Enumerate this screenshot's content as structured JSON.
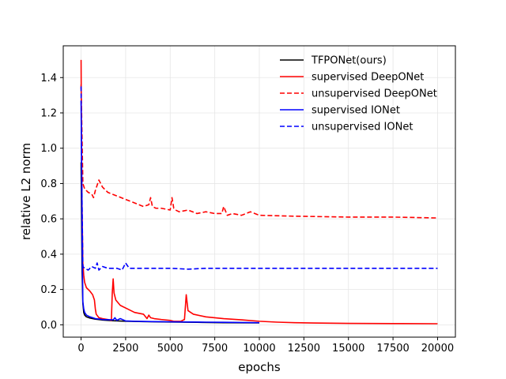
{
  "chart_data": {
    "type": "line",
    "title": "",
    "xlabel": "epochs",
    "ylabel": "relative L2 norm",
    "xlim": [
      -1000,
      21000
    ],
    "ylim": [
      -0.07,
      1.58
    ],
    "xticks": [
      0,
      2500,
      5000,
      7500,
      10000,
      12500,
      15000,
      17500,
      20000
    ],
    "xtick_labels": [
      "0",
      "2500",
      "5000",
      "7500",
      "10000",
      "12500",
      "15000",
      "17500",
      "20000"
    ],
    "yticks": [
      0.0,
      0.2,
      0.4,
      0.6,
      0.8,
      1.0,
      1.2,
      1.4
    ],
    "ytick_labels": [
      "0.0",
      "0.2",
      "0.4",
      "0.6",
      "0.8",
      "1.0",
      "1.2",
      "1.4"
    ],
    "grid": true,
    "legend_position": "top-right",
    "series": [
      {
        "name": "TFPONet(ours)",
        "color": "#000000",
        "dash": "solid",
        "x": [
          0,
          30,
          60,
          100,
          150,
          200,
          300,
          500,
          800,
          1200,
          1800,
          2500,
          3500,
          5000,
          6500,
          8000,
          10000
        ],
        "y": [
          0.92,
          0.6,
          0.3,
          0.12,
          0.07,
          0.055,
          0.045,
          0.038,
          0.032,
          0.027,
          0.023,
          0.02,
          0.018,
          0.016,
          0.014,
          0.012,
          0.011
        ]
      },
      {
        "name": "supervised DeepONet",
        "color": "#ff0000",
        "dash": "solid",
        "x": [
          0,
          20,
          50,
          100,
          150,
          200,
          300,
          500,
          650,
          750,
          800,
          850,
          1000,
          1200,
          1500,
          1700,
          1750,
          1800,
          1850,
          1950,
          2200,
          2600,
          3000,
          3500,
          3700,
          3800,
          3900,
          4100,
          4500,
          5000,
          5200,
          5600,
          5800,
          5900,
          6000,
          6300,
          7000,
          8000,
          9000,
          10000,
          11000,
          12000,
          13000,
          15000,
          17500,
          20000
        ],
        "y": [
          1.5,
          1.1,
          0.7,
          0.35,
          0.28,
          0.24,
          0.21,
          0.19,
          0.17,
          0.14,
          0.09,
          0.06,
          0.04,
          0.035,
          0.03,
          0.025,
          0.18,
          0.26,
          0.18,
          0.14,
          0.11,
          0.09,
          0.07,
          0.06,
          0.035,
          0.055,
          0.04,
          0.035,
          0.03,
          0.025,
          0.02,
          0.02,
          0.03,
          0.17,
          0.08,
          0.06,
          0.045,
          0.035,
          0.028,
          0.02,
          0.015,
          0.012,
          0.01,
          0.008,
          0.007,
          0.006
        ]
      },
      {
        "name": "unsupervised DeepONet",
        "color": "#ff0000",
        "dash": "dashed",
        "x": [
          0,
          30,
          100,
          200,
          400,
          600,
          700,
          800,
          900,
          1000,
          1200,
          1500,
          2000,
          2500,
          3000,
          3500,
          3800,
          3900,
          4000,
          4200,
          4500,
          5000,
          5100,
          5200,
          5300,
          5500,
          6000,
          6500,
          7000,
          7500,
          7900,
          8000,
          8200,
          8500,
          9000,
          9500,
          10000,
          12000,
          15000,
          17500,
          20000
        ],
        "y": [
          1.36,
          1.2,
          0.8,
          0.77,
          0.75,
          0.74,
          0.72,
          0.76,
          0.79,
          0.82,
          0.78,
          0.75,
          0.73,
          0.71,
          0.69,
          0.67,
          0.68,
          0.72,
          0.67,
          0.66,
          0.66,
          0.65,
          0.72,
          0.66,
          0.65,
          0.64,
          0.65,
          0.63,
          0.64,
          0.63,
          0.63,
          0.67,
          0.62,
          0.63,
          0.62,
          0.64,
          0.62,
          0.615,
          0.61,
          0.61,
          0.605
        ]
      },
      {
        "name": "supervised IONet",
        "color": "#0000ff",
        "dash": "solid",
        "x": [
          0,
          30,
          60,
          100,
          150,
          200,
          300,
          500,
          800,
          1200,
          1800,
          1900,
          2000,
          2200,
          2500,
          3000,
          3500,
          4000,
          5000,
          6000,
          7000,
          8000,
          9000,
          10000
        ],
        "y": [
          1.27,
          0.9,
          0.45,
          0.13,
          0.09,
          0.07,
          0.055,
          0.045,
          0.035,
          0.03,
          0.028,
          0.04,
          0.025,
          0.035,
          0.022,
          0.02,
          0.019,
          0.018,
          0.017,
          0.016,
          0.015,
          0.014,
          0.013,
          0.012
        ]
      },
      {
        "name": "unsupervised IONet",
        "color": "#0000ff",
        "dash": "dashed",
        "x": [
          0,
          30,
          100,
          200,
          400,
          600,
          800,
          900,
          1000,
          1200,
          1500,
          2000,
          2300,
          2500,
          2700,
          3000,
          4000,
          5000,
          6000,
          7000,
          10000,
          12500,
          15000,
          17500,
          20000
        ],
        "y": [
          1.35,
          0.9,
          0.33,
          0.32,
          0.31,
          0.33,
          0.32,
          0.35,
          0.31,
          0.33,
          0.32,
          0.32,
          0.31,
          0.35,
          0.32,
          0.32,
          0.32,
          0.32,
          0.315,
          0.32,
          0.32,
          0.32,
          0.32,
          0.32,
          0.32
        ]
      }
    ]
  }
}
